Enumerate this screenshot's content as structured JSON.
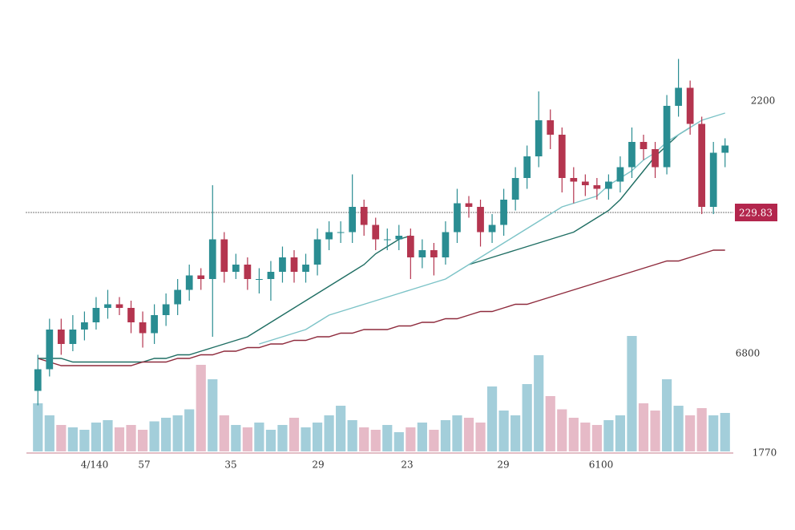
{
  "chart_data": {
    "type": "candlestick",
    "up_color": "#2a8d92",
    "down_color": "#b4354f",
    "volume_up_color": "#93c6d3",
    "volume_down_color": "#e2aebd",
    "ylim": [
      0,
      100
    ],
    "volume_lim": [
      0,
      100
    ],
    "open": [
      5,
      11,
      22,
      18,
      22,
      24,
      28,
      29,
      28,
      24,
      21,
      26,
      29,
      33,
      37,
      36,
      47,
      38,
      40,
      36,
      36,
      38,
      42,
      38,
      40,
      47,
      49,
      49,
      56,
      51,
      47,
      47,
      48,
      42,
      44,
      42,
      49,
      57,
      56,
      49,
      51,
      58,
      64,
      70,
      80,
      76,
      64,
      63,
      62,
      61,
      63,
      67,
      74,
      72,
      67,
      84,
      89,
      79,
      56,
      71
    ],
    "high": [
      15,
      25,
      25,
      26,
      27,
      31,
      33,
      31,
      30,
      27,
      29,
      32,
      36,
      40,
      39,
      62,
      49,
      43,
      42,
      39,
      41,
      45,
      44,
      43,
      50,
      52,
      52,
      65,
      58,
      53,
      50,
      51,
      50,
      47,
      46,
      52,
      61,
      59,
      58,
      54,
      61,
      67,
      73,
      88,
      83,
      78,
      67,
      65,
      64,
      65,
      70,
      78,
      76,
      74,
      87,
      97,
      91,
      81,
      74,
      75
    ],
    "low": [
      1,
      9,
      15,
      16,
      19,
      22,
      25,
      26,
      21,
      17,
      18,
      23,
      26,
      30,
      33,
      20,
      35,
      36,
      33,
      32,
      30,
      35,
      35,
      35,
      37,
      44,
      46,
      46,
      48,
      44,
      44,
      44,
      36,
      39,
      37,
      40,
      46,
      53,
      45,
      46,
      48,
      55,
      61,
      67,
      72,
      60,
      57,
      59,
      58,
      58,
      60,
      64,
      69,
      64,
      65,
      81,
      76,
      54,
      54,
      67
    ],
    "close": [
      11,
      22,
      18,
      22,
      24,
      28,
      29,
      28,
      24,
      21,
      26,
      29,
      33,
      37,
      36,
      47,
      38,
      40,
      36,
      36,
      38,
      42,
      38,
      40,
      47,
      49,
      49,
      56,
      51,
      47,
      47,
      48,
      42,
      44,
      42,
      49,
      57,
      56,
      49,
      51,
      58,
      64,
      70,
      80,
      76,
      64,
      63,
      62,
      61,
      63,
      67,
      74,
      72,
      67,
      84,
      89,
      79,
      56,
      71,
      73
    ],
    "volume": [
      40,
      30,
      22,
      20,
      18,
      24,
      26,
      20,
      22,
      18,
      25,
      28,
      30,
      35,
      72,
      60,
      30,
      22,
      20,
      24,
      18,
      22,
      28,
      20,
      24,
      30,
      38,
      26,
      20,
      18,
      22,
      16,
      20,
      24,
      18,
      26,
      30,
      28,
      24,
      54,
      34,
      30,
      56,
      80,
      46,
      35,
      28,
      24,
      22,
      26,
      30,
      96,
      40,
      34,
      60,
      38,
      30,
      36,
      30,
      32
    ],
    "moving_averages": [
      {
        "color": "#1f6e63",
        "values": [
          14,
          14,
          14,
          13,
          13,
          13,
          13,
          13,
          13,
          13,
          14,
          14,
          15,
          15,
          16,
          17,
          18,
          19,
          20,
          22,
          24,
          26,
          28,
          30,
          32,
          34,
          36,
          38,
          40,
          43,
          45,
          47,
          48,
          null,
          null,
          null,
          null,
          40,
          41,
          42,
          43,
          44,
          45,
          46,
          47,
          48,
          49,
          51,
          53,
          55,
          58,
          62,
          66,
          70,
          73,
          76,
          78,
          null,
          null,
          null
        ]
      },
      {
        "color": "#7cc3c7",
        "values": [
          null,
          null,
          null,
          null,
          null,
          null,
          null,
          null,
          null,
          null,
          null,
          null,
          null,
          null,
          null,
          null,
          null,
          null,
          null,
          18,
          19,
          20,
          21,
          22,
          24,
          26,
          27,
          28,
          29,
          30,
          31,
          32,
          33,
          34,
          35,
          36,
          38,
          40,
          42,
          44,
          46,
          48,
          50,
          52,
          54,
          56,
          57,
          58,
          59,
          62,
          64,
          66,
          69,
          71,
          74,
          76,
          78,
          80,
          81,
          82
        ]
      },
      {
        "color": "#8e2a3c",
        "values": [
          14,
          13,
          12,
          12,
          12,
          12,
          12,
          12,
          12,
          13,
          13,
          13,
          14,
          14,
          15,
          15,
          16,
          16,
          17,
          17,
          18,
          18,
          19,
          19,
          20,
          20,
          21,
          21,
          22,
          22,
          22,
          23,
          23,
          24,
          24,
          25,
          25,
          26,
          27,
          27,
          28,
          29,
          29,
          30,
          31,
          32,
          33,
          34,
          35,
          36,
          37,
          38,
          39,
          40,
          41,
          41,
          42,
          43,
          44,
          44
        ]
      }
    ],
    "right_labels": [
      "2200",
      "6800",
      "1770"
    ],
    "price_tag": "229.83",
    "x_labels": [
      "4/140",
      "57",
      "35",
      "29",
      "23",
      "29",
      "6100"
    ]
  }
}
